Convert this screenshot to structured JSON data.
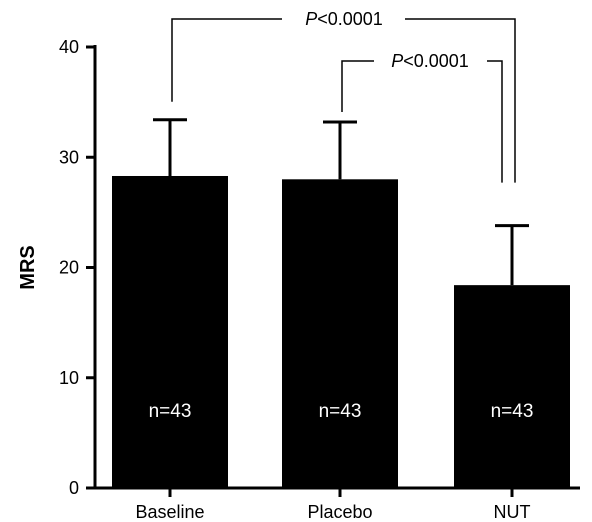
{
  "chart_data": {
    "type": "bar",
    "categories": [
      "Baseline",
      "Placebo",
      "NUT"
    ],
    "values": [
      28.3,
      28.0,
      18.4
    ],
    "error_upper": [
      33.4,
      33.2,
      23.8
    ],
    "bar_labels": [
      "n=43",
      "n=43",
      "n=43"
    ],
    "title": "",
    "xlabel": "",
    "ylabel": "MRS",
    "ylim": [
      0,
      40
    ],
    "yticks": [
      0,
      10,
      20,
      30,
      40
    ],
    "grid": false,
    "bar_color": "#000000",
    "bar_label_color": "#ffffff",
    "annotations": [
      {
        "from": "Baseline",
        "to": "NUT",
        "label_italic": "P",
        "label_rest": "<0.0001"
      },
      {
        "from": "Placebo",
        "to": "NUT",
        "label_italic": "P",
        "label_rest": "<0.0001"
      }
    ]
  }
}
